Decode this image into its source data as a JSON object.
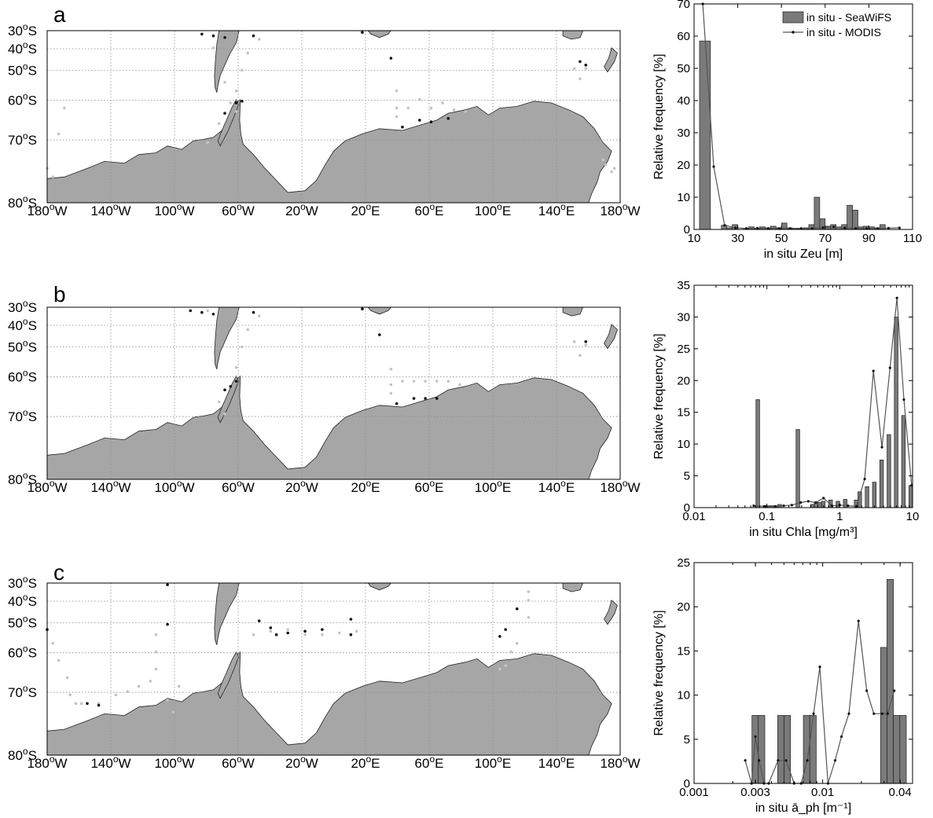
{
  "panels": [
    {
      "label": "a",
      "map": {
        "lat_ticks": [
          "30°S",
          "40°S",
          "50°S",
          "60°S",
          "70°S",
          "80°S"
        ],
        "lon_ticks": [
          "180°W",
          "140°W",
          "100°W",
          "60°W",
          "20°W",
          "20°E",
          "60°E",
          "100°E",
          "140°E",
          "180°W"
        ]
      }
    },
    {
      "label": "b",
      "map": {
        "lat_ticks": [
          "30°S",
          "40°S",
          "50°S",
          "60°S",
          "70°S",
          "80°S"
        ],
        "lon_ticks": [
          "180°W",
          "140°W",
          "100°W",
          "60°W",
          "20°W",
          "20°E",
          "60°E",
          "100°E",
          "140°E",
          "180°W"
        ]
      }
    },
    {
      "label": "c",
      "map": {
        "lat_ticks": [
          "30°S",
          "40°S",
          "50°S",
          "60°S",
          "70°S",
          "80°S"
        ],
        "lon_ticks": [
          "180°W",
          "140°W",
          "100°W",
          "60°W",
          "20°W",
          "20°E",
          "60°E",
          "100°E",
          "140°E",
          "180°W"
        ]
      }
    }
  ],
  "colors": {
    "land": "#a6a6a6",
    "bar": "#7a7a7a",
    "line": "#555555",
    "dot_gray": "#c4c4c4",
    "dot_black": "#111111",
    "grid": "#8c8c8c"
  },
  "chart_data": [
    {
      "type": "bar",
      "panel": "a",
      "xlabel": "in situ Zeu [m]",
      "ylabel": "Relative frequency [%]",
      "xscale": "linear",
      "xlim": [
        10,
        110
      ],
      "ylim": [
        0,
        70
      ],
      "xticks": [
        10,
        30,
        50,
        70,
        90,
        110
      ],
      "yticks": [
        0,
        10,
        20,
        30,
        40,
        50,
        60,
        70
      ],
      "legend": {
        "position": "top-right",
        "entries": [
          "in situ - SeaWiFS",
          "in situ - MODIS"
        ]
      },
      "series": [
        {
          "name": "in situ - SeaWiFS",
          "type": "bar",
          "bins": [
            [
              12.5,
              17.5
            ],
            [
              22.5,
              25
            ],
            [
              25,
              27.5
            ],
            [
              27.5,
              30
            ],
            [
              32.5,
              35
            ],
            [
              35,
              37.5
            ],
            [
              37.5,
              40
            ],
            [
              40,
              42.5
            ],
            [
              42.5,
              45
            ],
            [
              45,
              47.5
            ],
            [
              47.5,
              50
            ],
            [
              50,
              52.5
            ],
            [
              52.5,
              55
            ],
            [
              55,
              57.5
            ],
            [
              57.5,
              60
            ],
            [
              60,
              62.5
            ],
            [
              62.5,
              65
            ],
            [
              65,
              67.5
            ],
            [
              67.5,
              70
            ],
            [
              70,
              72.5
            ],
            [
              72.5,
              75
            ],
            [
              75,
              77.5
            ],
            [
              77.5,
              80
            ],
            [
              80,
              82.5
            ],
            [
              82.5,
              85
            ],
            [
              85,
              87.5
            ],
            [
              87.5,
              90
            ],
            [
              90,
              92.5
            ],
            [
              92.5,
              95
            ],
            [
              95,
              97.5
            ]
          ],
          "values": [
            58.5,
            1.3,
            0.5,
            1.5,
            0.4,
            0.8,
            0.4,
            0.8,
            0.5,
            1.0,
            0.5,
            2.0,
            0.5,
            0.4,
            0.4,
            0.5,
            1.5,
            10.0,
            3.3,
            1.0,
            1.5,
            0.8,
            1.5,
            7.5,
            6.0,
            0.8,
            1.0,
            0.8,
            0.5,
            1.5
          ]
        },
        {
          "name": "in situ - MODIS",
          "type": "line",
          "x": [
            14,
            19,
            24,
            29,
            34,
            39,
            44,
            49,
            54,
            59,
            64,
            69,
            74,
            79,
            84,
            89,
            94,
            99,
            104
          ],
          "y": [
            70,
            19.5,
            1.3,
            0.5,
            0.3,
            0.4,
            0.3,
            0.3,
            0.3,
            0.3,
            0.3,
            0.6,
            0.8,
            0.5,
            0.3,
            0.3,
            0.3,
            0.4,
            0.5
          ]
        }
      ]
    },
    {
      "type": "bar",
      "panel": "b",
      "xlabel": "in situ Chla [mg/m³]",
      "ylabel": "Relative frequency [%]",
      "xscale": "log",
      "xlim": [
        0.01,
        10
      ],
      "ylim": [
        0,
        35
      ],
      "xticks": [
        0.01,
        0.1,
        1,
        10
      ],
      "xtick_labels": [
        "0.01",
        "0.1",
        "1",
        "10"
      ],
      "yticks": [
        0,
        5,
        10,
        15,
        20,
        25,
        30,
        35
      ],
      "series": [
        {
          "name": "in situ - SeaWiFS",
          "type": "bar",
          "bins": [
            [
              0.0708,
              0.0794
            ],
            [
              0.0891,
              0.1
            ],
            [
              0.1,
              0.1122
            ],
            [
              0.1122,
              0.1259
            ],
            [
              0.1259,
              0.1413
            ],
            [
              0.1413,
              0.1585
            ],
            [
              0.2512,
              0.2818
            ],
            [
              0.3981,
              0.4467
            ],
            [
              0.4467,
              0.5012
            ],
            [
              0.5012,
              0.5623
            ],
            [
              0.5623,
              0.631
            ],
            [
              0.7079,
              0.7943
            ],
            [
              0.8913,
              1.0
            ],
            [
              1.122,
              1.259
            ],
            [
              1.585,
              1.778
            ],
            [
              1.778,
              1.995
            ],
            [
              2.239,
              2.512
            ],
            [
              2.818,
              3.162
            ],
            [
              3.548,
              3.981
            ],
            [
              4.467,
              5.012
            ],
            [
              5.623,
              6.31
            ],
            [
              7.079,
              7.943
            ],
            [
              8.913,
              10.0
            ]
          ],
          "values": [
            17,
            0.3,
            0.3,
            0.3,
            0.3,
            0.5,
            12.3,
            0.5,
            0.8,
            0.8,
            1.0,
            1.2,
            1.0,
            1.3,
            1.2,
            2.5,
            3.3,
            4.0,
            7.5,
            11.5,
            30.0,
            14.5,
            3.5
          ]
        },
        {
          "name": "in situ - MODIS",
          "type": "line",
          "x": [
            0.066,
            0.095,
            0.13,
            0.17,
            0.22,
            0.29,
            0.37,
            0.47,
            0.6,
            0.78,
            1.0,
            1.3,
            1.7,
            2.2,
            2.9,
            3.8,
            4.9,
            6.1,
            7.6,
            9.7
          ],
          "y": [
            0.3,
            0.2,
            0.2,
            0.3,
            0.4,
            0.8,
            1.0,
            0.8,
            1.5,
            0.3,
            0.4,
            0.3,
            0.2,
            4.5,
            21.5,
            9.5,
            22.0,
            33.0,
            17.0,
            3.5
          ]
        }
      ]
    },
    {
      "type": "bar",
      "panel": "c",
      "xlabel": "in situ ā_ph [m⁻¹]",
      "ylabel": "Relative frequency [%]",
      "xscale": "log",
      "xlim": [
        0.001,
        0.05
      ],
      "ylim": [
        0,
        25
      ],
      "xticks": [
        0.001,
        0.003,
        0.01,
        0.04
      ],
      "xtick_labels": [
        "0.001",
        "0.003",
        "0.01",
        "0.04"
      ],
      "yticks": [
        0,
        5,
        10,
        15,
        20,
        25
      ],
      "series": [
        {
          "name": "in situ - SeaWiFS",
          "type": "bar",
          "bins": [
            [
              0.00282,
              0.00316
            ],
            [
              0.00316,
              0.00355
            ],
            [
              0.00447,
              0.00501
            ],
            [
              0.00501,
              0.00562
            ],
            [
              0.00708,
              0.00794
            ],
            [
              0.00794,
              0.00891
            ],
            [
              0.02818,
              0.03162
            ],
            [
              0.03162,
              0.03548
            ],
            [
              0.03548,
              0.03981
            ],
            [
              0.03981,
              0.04467
            ]
          ],
          "values": [
            7.7,
            7.7,
            7.7,
            7.7,
            7.7,
            7.7,
            15.4,
            23.1,
            7.7,
            7.7
          ]
        },
        {
          "name": "in situ - MODIS",
          "type": "line",
          "x": [
            0.0025,
            0.0028,
            0.003,
            0.0032,
            0.0035,
            0.0038,
            0.0045,
            0.0052,
            0.006,
            0.0068,
            0.0076,
            0.0085,
            0.0095,
            0.011,
            0.0125,
            0.014,
            0.016,
            0.019,
            0.022,
            0.025,
            0.029,
            0.032,
            0.036
          ],
          "y": [
            2.6,
            0.0,
            5.3,
            2.6,
            0.0,
            0.0,
            2.6,
            2.6,
            0.0,
            0.0,
            2.6,
            7.9,
            13.2,
            0.0,
            2.6,
            5.3,
            7.9,
            18.4,
            10.5,
            7.9,
            7.9,
            7.9,
            10.5
          ]
        }
      ]
    }
  ]
}
